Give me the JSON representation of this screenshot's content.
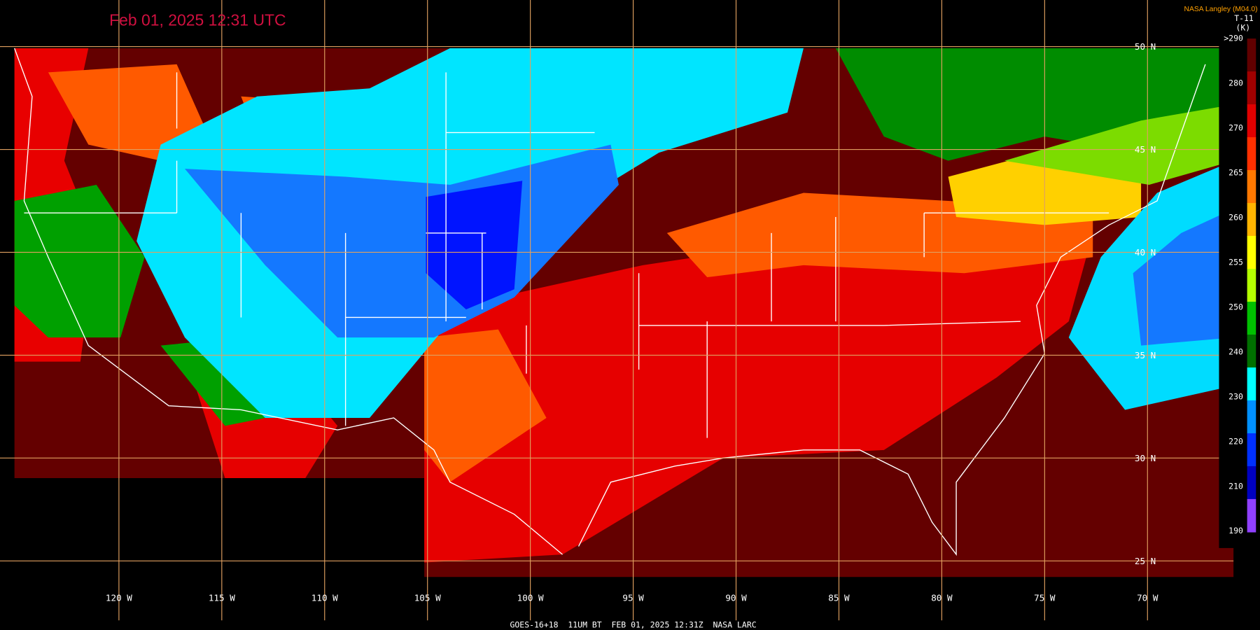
{
  "header": {
    "title": "Feb 01, 2025 12:31 UTC",
    "credit": "NASA Langley (M04.0)",
    "product": "T-11",
    "unit": "(K)"
  },
  "latitude_labels": [
    "50 N",
    "45 N",
    "40 N",
    "35 N",
    "30 N",
    "25 N"
  ],
  "longitude_labels": [
    "120 W",
    "115 W",
    "110 W",
    "105 W",
    "100 W",
    "95 W",
    "90 W",
    "85 W",
    "80 W",
    "75 W",
    "70 W"
  ],
  "colorbar_labels": [
    ">290",
    "280",
    "270",
    "265",
    "260",
    "255",
    "250",
    "240",
    "230",
    "220",
    "210",
    "190"
  ],
  "footer": "GOES-16+18  11UM BT  FEB 01, 2025 12:31Z  NASA LARC"
}
